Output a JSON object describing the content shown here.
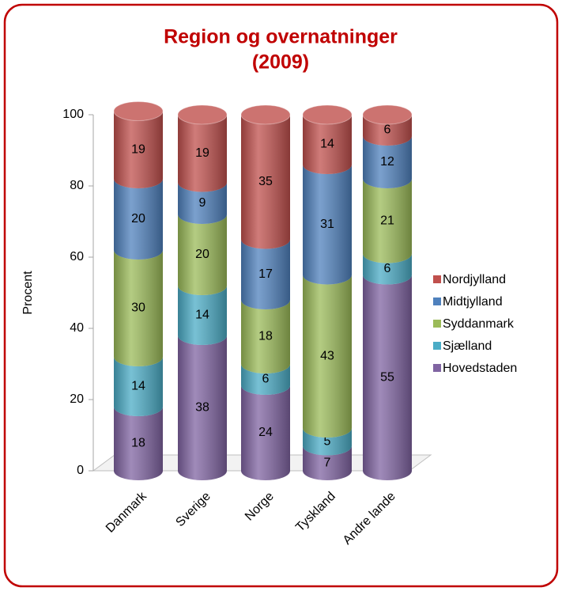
{
  "chart_data": {
    "type": "stacked_cylinder",
    "title": [
      "Region og overnatninger",
      "(2009)"
    ],
    "y_label": "Procent",
    "categories": [
      "Danmark",
      "Sverige",
      "Norge",
      "Tyskland",
      "Andre lande"
    ],
    "series": [
      {
        "name": "Hovedstaden",
        "color": "#8064a2",
        "values": [
          18,
          38,
          24,
          7,
          55
        ]
      },
      {
        "name": "Sjælland",
        "color": "#4bacc6",
        "values": [
          14,
          14,
          6,
          5,
          6
        ]
      },
      {
        "name": "Syddanmark",
        "color": "#9bbb59",
        "values": [
          30,
          20,
          18,
          43,
          21
        ]
      },
      {
        "name": "Midtjylland",
        "color": "#4f81bd",
        "values": [
          20,
          9,
          17,
          31,
          12
        ]
      },
      {
        "name": "Nordjylland",
        "color": "#c0504d",
        "values": [
          19,
          19,
          35,
          14,
          6
        ]
      }
    ],
    "ylim": [
      0,
      100
    ],
    "yticks": [
      0,
      20,
      40,
      60,
      80,
      100
    ],
    "grid": false,
    "legend": "right"
  }
}
